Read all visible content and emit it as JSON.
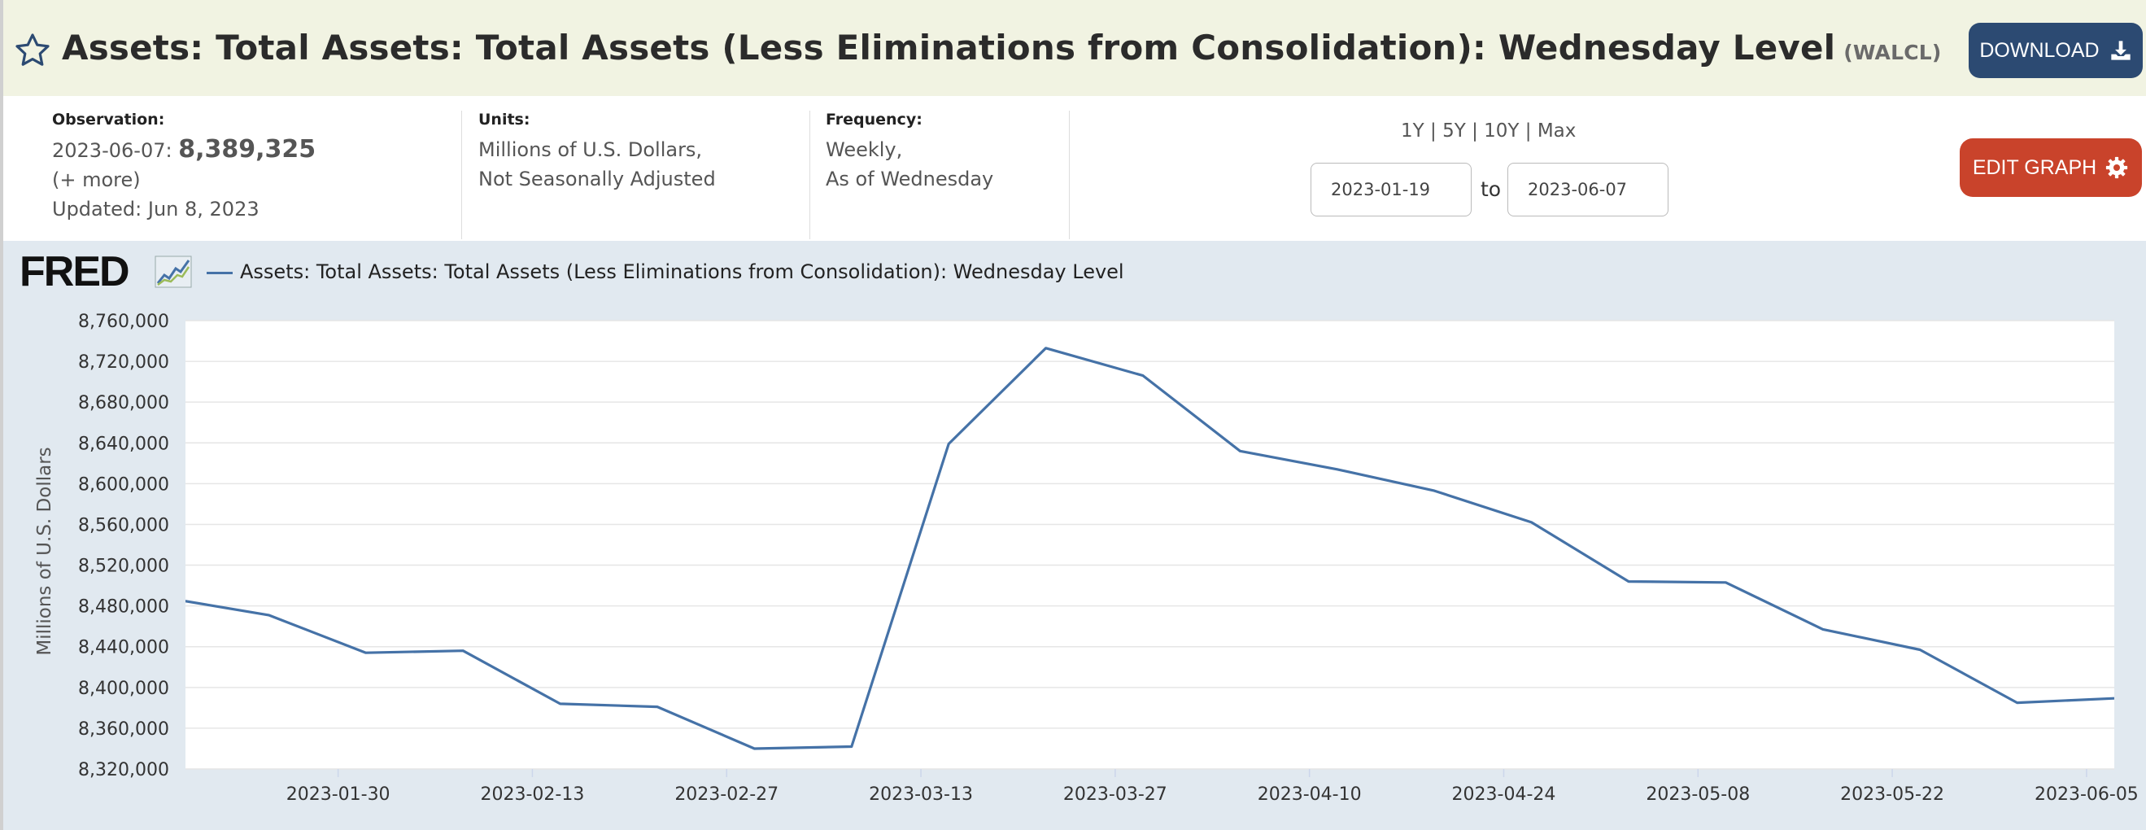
{
  "header": {
    "title": "Assets: Total Assets: Total Assets (Less Eliminations from Consolidation): Wednesday Level",
    "code": "(WALCL)",
    "download_label": "DOWNLOAD"
  },
  "meta": {
    "observation_label": "Observation:",
    "observation_date": "2023-06-07:",
    "observation_value": "8,389,325",
    "more": "(+ more)",
    "updated": "Updated: Jun 8, 2023",
    "units_label": "Units:",
    "units_line1": "Millions of U.S. Dollars,",
    "units_line2": "Not Seasonally Adjusted",
    "frequency_label": "Frequency:",
    "frequency_line1": "Weekly,",
    "frequency_line2": "As of Wednesday"
  },
  "range": {
    "links": [
      "1Y",
      "5Y",
      "10Y",
      "Max"
    ],
    "separator": "|",
    "from": "2023-01-19",
    "to_label": "to",
    "to": "2023-06-07"
  },
  "edit_graph_label": "EDIT GRAPH",
  "logo_text": "FRED",
  "colors": {
    "line": "#4572a7",
    "download": "#2c4a72",
    "edit": "#c9432b",
    "title_bg": "#f1f3e2",
    "chart_bg": "#e1e9f0"
  },
  "chart_data": {
    "type": "line",
    "series": [
      {
        "name": "Assets: Total Assets: Total Assets (Less Eliminations from Consolidation): Wednesday Level",
        "x": [
          "2023-01-18",
          "2023-01-25",
          "2023-02-01",
          "2023-02-08",
          "2023-02-15",
          "2023-02-22",
          "2023-03-01",
          "2023-03-08",
          "2023-03-15",
          "2023-03-22",
          "2023-03-29",
          "2023-04-05",
          "2023-04-12",
          "2023-04-19",
          "2023-04-26",
          "2023-05-03",
          "2023-05-10",
          "2023-05-17",
          "2023-05-24",
          "2023-05-31",
          "2023-06-07"
        ],
        "values": [
          8487000,
          8471000,
          8434000,
          8436000,
          8384000,
          8381000,
          8340000,
          8342000,
          8639000,
          8733000,
          8706000,
          8632000,
          8614000,
          8593000,
          8562000,
          8504000,
          8503000,
          8457000,
          8437000,
          8385000,
          8389325
        ]
      }
    ],
    "x_range": [
      "2023-01-19",
      "2023-06-07"
    ],
    "xticks": [
      "2023-01-30",
      "2023-02-13",
      "2023-02-27",
      "2023-03-13",
      "2023-03-27",
      "2023-04-10",
      "2023-04-24",
      "2023-05-08",
      "2023-05-22",
      "2023-06-05"
    ],
    "ylim": [
      8320000,
      8760000
    ],
    "yticks": [
      "8,320,000",
      "8,360,000",
      "8,400,000",
      "8,440,000",
      "8,480,000",
      "8,520,000",
      "8,560,000",
      "8,600,000",
      "8,640,000",
      "8,680,000",
      "8,720,000",
      "8,760,000"
    ],
    "ylabel": "Millions of U.S. Dollars",
    "xlabel": "",
    "grid": true,
    "legend": "top-left"
  }
}
